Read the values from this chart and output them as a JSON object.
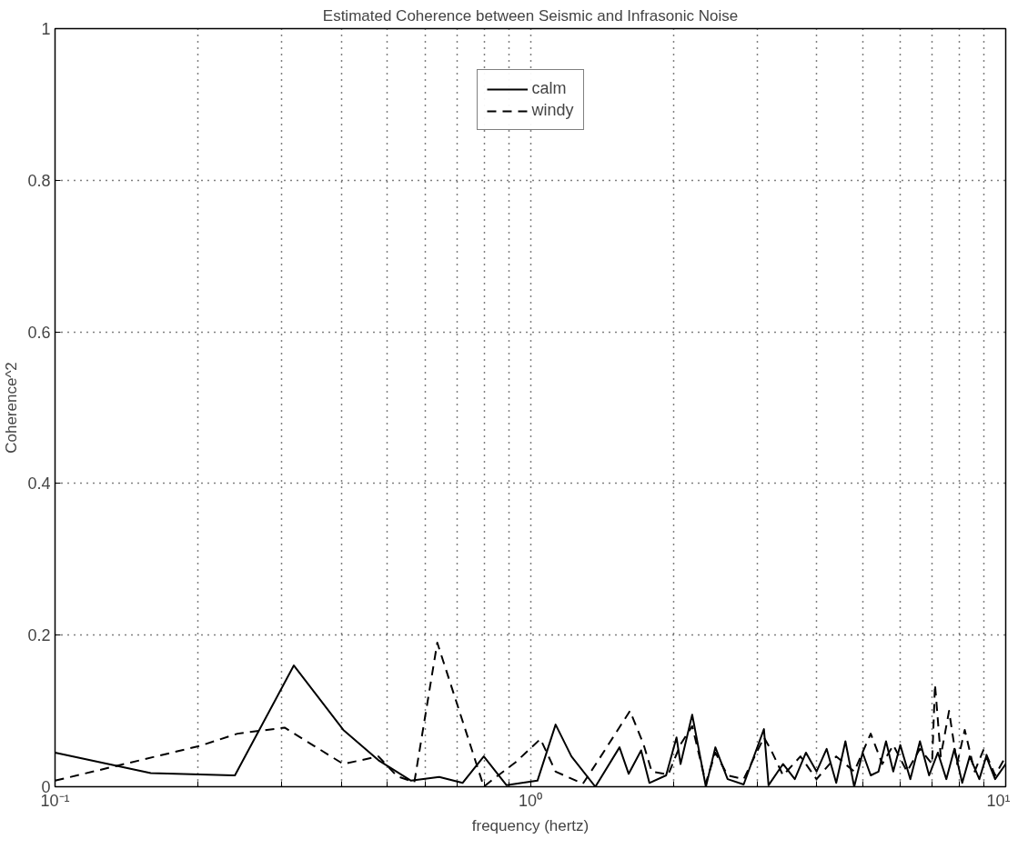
{
  "chart_data": {
    "type": "line",
    "title": "Estimated Coherence between Seismic and Infrasonic Noise",
    "xlabel": "frequency (hertz)",
    "ylabel": "Coherence^2",
    "log": "x",
    "grid": true,
    "legend": "top",
    "marker": "none",
    "xlim": [
      0.1,
      10
    ],
    "ylim": [
      0,
      1
    ],
    "xticks": [
      {
        "value": 0.1,
        "label": "10⁻¹"
      },
      {
        "value": 0.2,
        "label": null
      },
      {
        "value": 0.3,
        "label": null
      },
      {
        "value": 0.4,
        "label": null
      },
      {
        "value": 0.5,
        "label": null
      },
      {
        "value": 0.6,
        "label": null
      },
      {
        "value": 0.7,
        "label": null
      },
      {
        "value": 0.8,
        "label": null
      },
      {
        "value": 0.9,
        "label": null
      },
      {
        "value": 1,
        "label": "10⁰"
      },
      {
        "value": 2,
        "label": null
      },
      {
        "value": 3,
        "label": null
      },
      {
        "value": 4,
        "label": null
      },
      {
        "value": 5,
        "label": null
      },
      {
        "value": 6,
        "label": null
      },
      {
        "value": 7,
        "label": null
      },
      {
        "value": 8,
        "label": null
      },
      {
        "value": 9,
        "label": null
      },
      {
        "value": 10,
        "label": "10¹"
      }
    ],
    "yticks": [
      0,
      0.2,
      0.4,
      0.6,
      0.8,
      1
    ],
    "series": [
      {
        "name": "calm",
        "color": "#000000",
        "line_style": "solid",
        "x": [
          0.1,
          0.159,
          0.239,
          0.318,
          0.404,
          0.479,
          0.561,
          0.643,
          0.72,
          0.798,
          0.891,
          1.035,
          1.13,
          1.22,
          1.37,
          1.54,
          1.61,
          1.71,
          1.78,
          1.93,
          2.03,
          2.07,
          2.19,
          2.34,
          2.45,
          2.6,
          2.81,
          3.1,
          3.17,
          3.4,
          3.6,
          3.8,
          4.0,
          4.2,
          4.4,
          4.6,
          4.8,
          5.0,
          5.2,
          5.4,
          5.6,
          5.8,
          6.0,
          6.3,
          6.6,
          6.9,
          7.2,
          7.5,
          7.8,
          8.1,
          8.4,
          8.8,
          9.1,
          9.5,
          10
        ],
        "values": [
          0.045,
          0.018,
          0.015,
          0.16,
          0.075,
          0.035,
          0.008,
          0.013,
          0.005,
          0.04,
          0.002,
          0.008,
          0.082,
          0.04,
          0.0,
          0.052,
          0.017,
          0.048,
          0.005,
          0.015,
          0.065,
          0.03,
          0.095,
          0.0,
          0.052,
          0.01,
          0.003,
          0.076,
          0.002,
          0.03,
          0.01,
          0.045,
          0.02,
          0.05,
          0.005,
          0.06,
          0.0,
          0.045,
          0.015,
          0.02,
          0.06,
          0.02,
          0.055,
          0.01,
          0.06,
          0.015,
          0.045,
          0.01,
          0.05,
          0.005,
          0.04,
          0.01,
          0.04,
          0.01,
          0.03
        ]
      },
      {
        "name": "windy",
        "color": "#000000",
        "line_style": "dashed",
        "x": [
          0.1,
          0.202,
          0.242,
          0.304,
          0.404,
          0.479,
          0.524,
          0.57,
          0.637,
          0.798,
          0.835,
          0.93,
          1.05,
          1.13,
          1.29,
          1.4,
          1.62,
          1.73,
          1.8,
          1.95,
          2.07,
          2.19,
          2.34,
          2.45,
          2.6,
          2.81,
          3.1,
          3.2,
          3.4,
          3.7,
          4.0,
          4.4,
          4.8,
          5.2,
          5.5,
          5.8,
          6.2,
          6.6,
          7.0,
          7.1,
          7.3,
          7.6,
          7.9,
          8.2,
          8.6,
          9.0,
          9.5,
          10
        ],
        "values": [
          0.008,
          0.054,
          0.07,
          0.078,
          0.03,
          0.04,
          0.014,
          0.006,
          0.19,
          0.0,
          0.01,
          0.032,
          0.063,
          0.02,
          0.004,
          0.038,
          0.1,
          0.056,
          0.02,
          0.016,
          0.056,
          0.08,
          0.005,
          0.045,
          0.015,
          0.01,
          0.065,
          0.05,
          0.015,
          0.04,
          0.01,
          0.04,
          0.02,
          0.07,
          0.03,
          0.055,
          0.02,
          0.05,
          0.03,
          0.135,
          0.04,
          0.1,
          0.03,
          0.075,
          0.02,
          0.05,
          0.015,
          0.04
        ]
      }
    ]
  }
}
